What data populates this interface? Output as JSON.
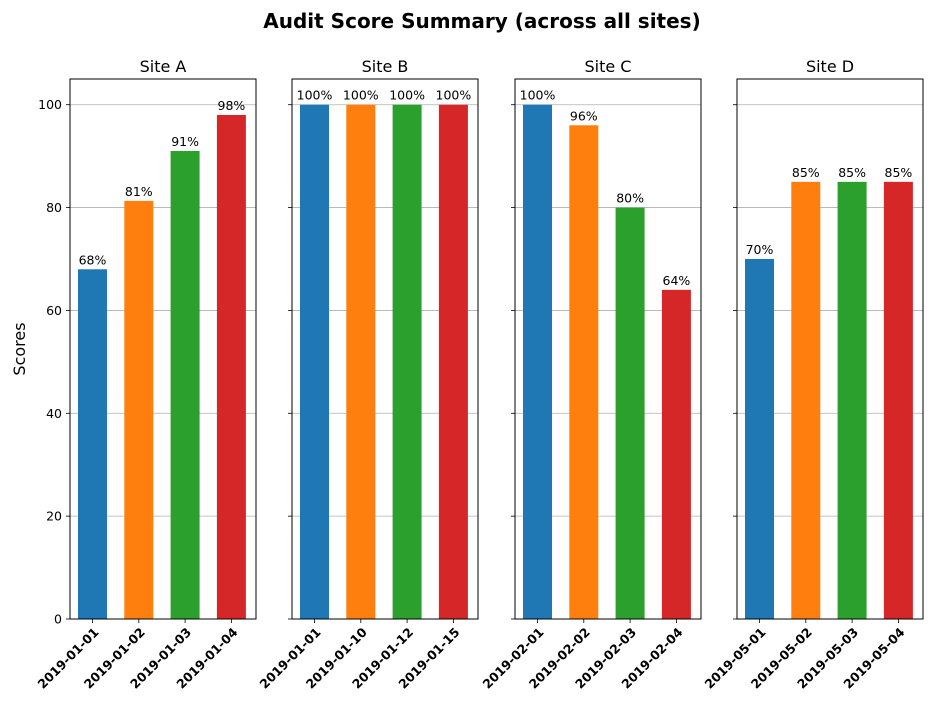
{
  "chart_data": {
    "type": "bar",
    "title": "Audit Score Summary (across all sites)",
    "ylabel": "Scores",
    "ylim": [
      0,
      105
    ],
    "yticks": [
      "0",
      "20",
      "40",
      "60",
      "80",
      "100"
    ],
    "ytick_values": [
      0,
      20,
      40,
      60,
      80,
      100
    ],
    "grid": "horizontal",
    "bar_colors": [
      "#1f77b4",
      "#ff7f0e",
      "#2ca02c",
      "#d62728"
    ],
    "panels": [
      {
        "title": "Site A",
        "categories": [
          "2019-01-01",
          "2019-01-02",
          "2019-01-03",
          "2019-01-04"
        ],
        "values": [
          68,
          81.3,
          91,
          98
        ],
        "labels": [
          "68%",
          "81%",
          "91%",
          "98%"
        ]
      },
      {
        "title": "Site B",
        "categories": [
          "2019-01-01",
          "2019-01-10",
          "2019-01-12",
          "2019-01-15"
        ],
        "values": [
          100,
          100,
          100,
          100
        ],
        "labels": [
          "100%",
          "100%",
          "100%",
          "100%"
        ]
      },
      {
        "title": "Site C",
        "categories": [
          "2019-02-01",
          "2019-02-02",
          "2019-02-03",
          "2019-02-04"
        ],
        "values": [
          100,
          96,
          80,
          64
        ],
        "labels": [
          "100%",
          "96%",
          "80%",
          "64%"
        ]
      },
      {
        "title": "Site D",
        "categories": [
          "2019-05-01",
          "2019-05-02",
          "2019-05-03",
          "2019-05-04"
        ],
        "values": [
          70,
          85,
          85,
          85
        ],
        "labels": [
          "70%",
          "85%",
          "85%",
          "85%"
        ]
      }
    ]
  }
}
